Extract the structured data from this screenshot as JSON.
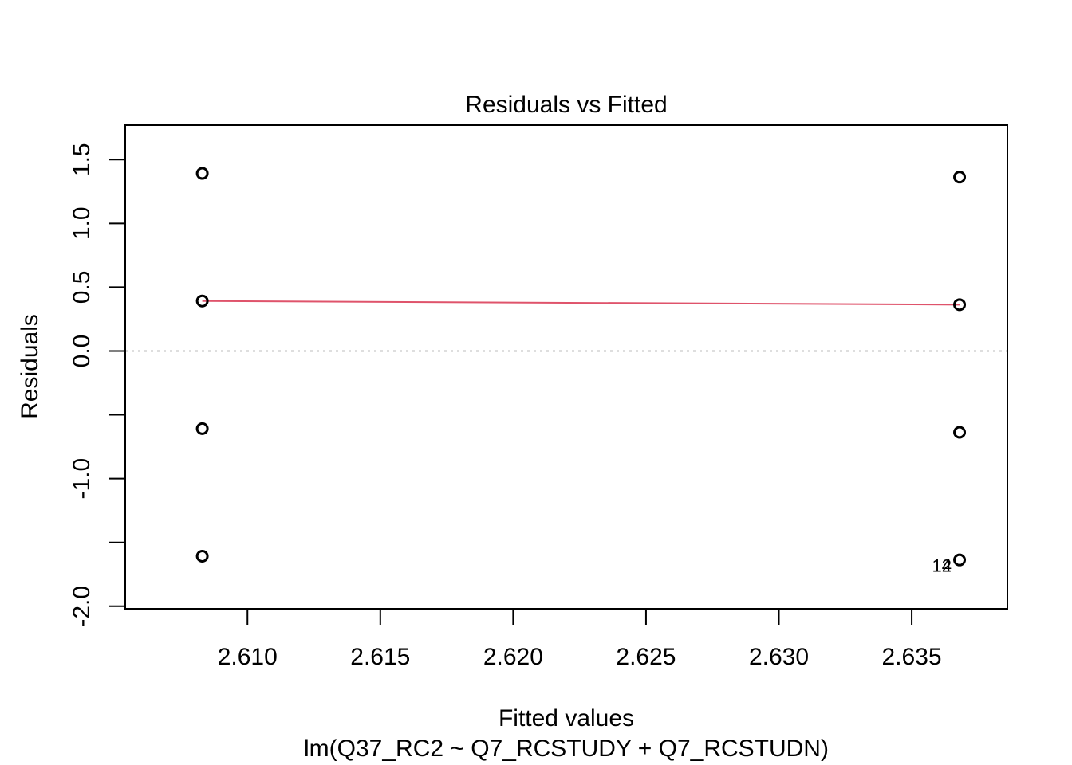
{
  "chart_data": {
    "type": "scatter",
    "title": "Residuals vs Fitted",
    "xlabel": "Fitted values",
    "sub": "lm(Q37_RC2 ~ Q7_RCSTUDY + Q7_RCSTUDN)",
    "ylabel": "Residuals",
    "xlim": [
      2.6054,
      2.6386
    ],
    "ylim": [
      -2.02,
      1.77
    ],
    "x_ticks": [
      2.61,
      2.615,
      2.62,
      2.625,
      2.63,
      2.635
    ],
    "x_tick_labels": [
      "2.610",
      "2.615",
      "2.620",
      "2.625",
      "2.630",
      "2.635"
    ],
    "y_ticks": [
      -2.0,
      -1.5,
      -1.0,
      -0.5,
      0.0,
      0.5,
      1.0,
      1.5
    ],
    "y_tick_labels": [
      "-2.0",
      "",
      "-1.0",
      "",
      "0.0",
      "0.5",
      "1.0",
      "1.5"
    ],
    "points": [
      {
        "x": 2.6083,
        "y": 1.392
      },
      {
        "x": 2.6083,
        "y": 0.392
      },
      {
        "x": 2.6083,
        "y": -0.608
      },
      {
        "x": 2.6083,
        "y": -1.608
      },
      {
        "x": 2.6368,
        "y": 1.363
      },
      {
        "x": 2.6368,
        "y": 0.363
      },
      {
        "x": 2.6368,
        "y": -0.637
      },
      {
        "x": 2.6368,
        "y": -1.637
      }
    ],
    "smooth_line": {
      "color": "#DF536B",
      "points": [
        {
          "x": 2.6083,
          "y": 0.392
        },
        {
          "x": 2.6368,
          "y": 0.363
        }
      ]
    },
    "reference_line": {
      "y": 0,
      "style": "dotted",
      "color": "#BEBEBE"
    },
    "point_labels": [
      {
        "text": "12",
        "x": 2.6368,
        "y": -1.637
      },
      {
        "text": "4",
        "x": 2.6368,
        "y": -1.637
      }
    ],
    "grid": false
  }
}
